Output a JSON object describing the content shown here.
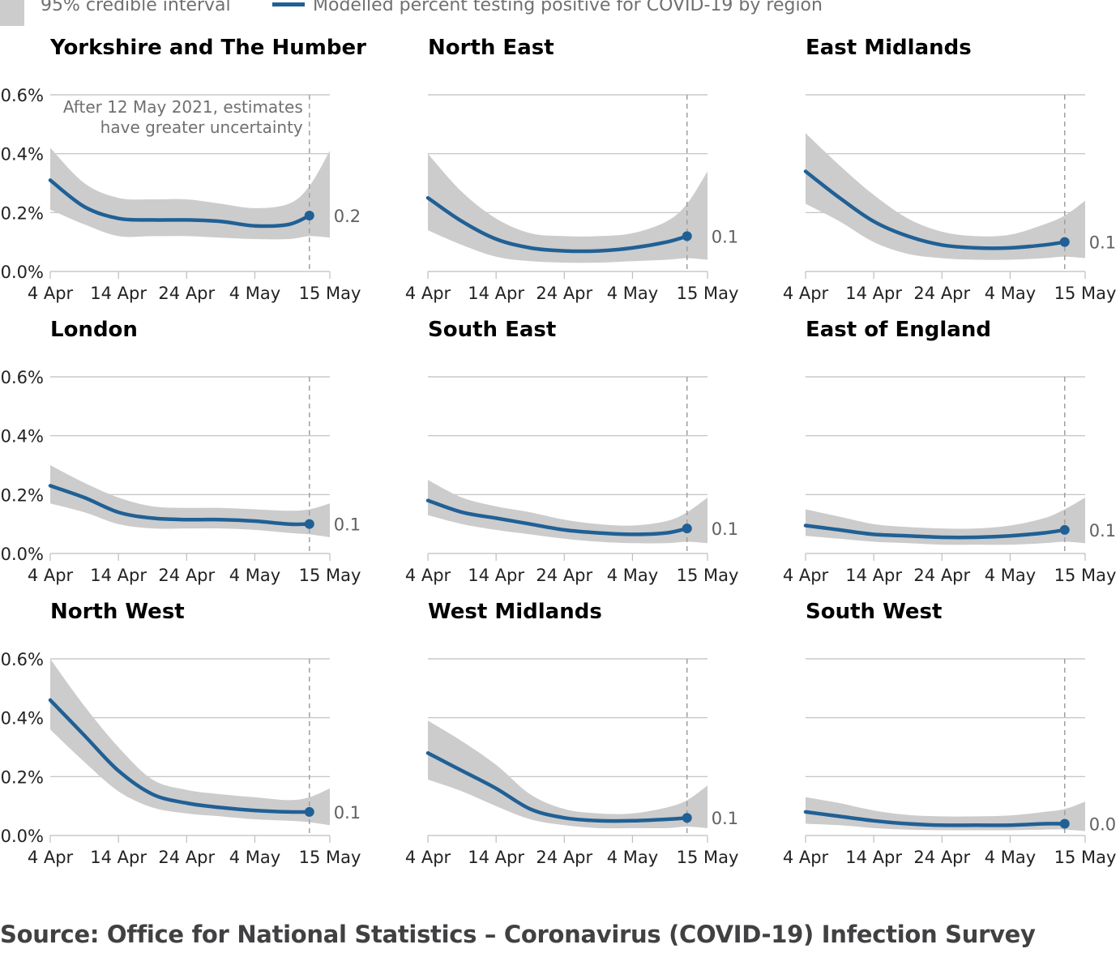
{
  "legend": {
    "band_label": "95% credible interval",
    "line_label": "Modelled percent testing positive for COVID-19 by region"
  },
  "source": "Source: Office for National Statistics – Coronavirus (COVID-19) Infection Survey",
  "colors": {
    "line": "#206095",
    "band": "#cccccc",
    "grid": "#bebebe",
    "axis_text": "#222222",
    "annotation": "#707070",
    "source": "#414042"
  },
  "chart_data": {
    "type": "line",
    "x_ticks": [
      "4 Apr",
      "14 Apr",
      "24 Apr",
      "4 May",
      "15 May"
    ],
    "y_ticks": [
      "0.0%",
      "0.2%",
      "0.4%",
      "0.6%"
    ],
    "ylim": [
      0,
      0.6
    ],
    "x_dates": [
      "2021-04-04",
      "2021-04-09",
      "2021-04-14",
      "2021-04-19",
      "2021-04-24",
      "2021-04-29",
      "2021-05-04",
      "2021-05-09",
      "2021-05-12",
      "2021-05-15"
    ],
    "annotation": {
      "date": "2021-05-12",
      "text": [
        "After 12 May 2021, estimates",
        "have greater uncertainty"
      ]
    },
    "regions": [
      {
        "name": "Yorkshire and The Humber",
        "end_label": "0.2",
        "values": [
          0.31,
          0.22,
          0.18,
          0.175,
          0.175,
          0.17,
          0.155,
          0.16,
          0.19,
          null
        ],
        "lower": [
          0.21,
          0.16,
          0.12,
          0.12,
          0.12,
          0.115,
          0.11,
          0.11,
          0.12,
          0.115
        ],
        "upper": [
          0.42,
          0.3,
          0.25,
          0.245,
          0.245,
          0.23,
          0.215,
          0.23,
          0.29,
          0.41
        ]
      },
      {
        "name": "North East",
        "end_label": "0.1",
        "values": [
          0.25,
          0.17,
          0.11,
          0.08,
          0.07,
          0.07,
          0.08,
          0.1,
          0.12,
          null
        ],
        "lower": [
          0.14,
          0.09,
          0.05,
          0.035,
          0.03,
          0.03,
          0.035,
          0.04,
          0.045,
          0.04
        ],
        "upper": [
          0.4,
          0.27,
          0.18,
          0.13,
          0.12,
          0.12,
          0.13,
          0.17,
          0.23,
          0.34
        ]
      },
      {
        "name": "East Midlands",
        "end_label": "0.1",
        "values": [
          0.34,
          0.25,
          0.17,
          0.12,
          0.09,
          0.08,
          0.08,
          0.09,
          0.1,
          null
        ],
        "lower": [
          0.23,
          0.17,
          0.1,
          0.06,
          0.045,
          0.04,
          0.04,
          0.045,
          0.05,
          0.045
        ],
        "upper": [
          0.47,
          0.36,
          0.26,
          0.18,
          0.135,
          0.12,
          0.125,
          0.16,
          0.19,
          0.24
        ]
      },
      {
        "name": "London",
        "end_label": "0.1",
        "values": [
          0.23,
          0.19,
          0.14,
          0.12,
          0.115,
          0.115,
          0.11,
          0.1,
          0.1,
          null
        ],
        "lower": [
          0.17,
          0.14,
          0.1,
          0.085,
          0.085,
          0.085,
          0.08,
          0.07,
          0.065,
          0.055
        ],
        "upper": [
          0.3,
          0.24,
          0.19,
          0.16,
          0.155,
          0.155,
          0.15,
          0.145,
          0.15,
          0.17
        ]
      },
      {
        "name": "South East",
        "end_label": "0.1",
        "values": [
          0.18,
          0.14,
          0.12,
          0.1,
          0.08,
          0.07,
          0.065,
          0.07,
          0.085,
          null
        ],
        "lower": [
          0.13,
          0.1,
          0.08,
          0.065,
          0.05,
          0.04,
          0.035,
          0.035,
          0.04,
          0.035
        ],
        "upper": [
          0.25,
          0.19,
          0.16,
          0.14,
          0.115,
          0.1,
          0.095,
          0.11,
          0.14,
          0.19
        ]
      },
      {
        "name": "East of England",
        "end_label": "0.1",
        "values": [
          0.095,
          0.08,
          0.065,
          0.06,
          0.055,
          0.055,
          0.06,
          0.07,
          0.08,
          null
        ],
        "lower": [
          0.06,
          0.05,
          0.04,
          0.035,
          0.03,
          0.03,
          0.03,
          0.035,
          0.04,
          0.035
        ],
        "upper": [
          0.15,
          0.125,
          0.1,
          0.09,
          0.085,
          0.085,
          0.095,
          0.12,
          0.15,
          0.19
        ]
      },
      {
        "name": "North West",
        "end_label": "0.1",
        "values": [
          0.46,
          0.34,
          0.22,
          0.14,
          0.11,
          0.095,
          0.085,
          0.08,
          0.08,
          null
        ],
        "lower": [
          0.36,
          0.25,
          0.15,
          0.095,
          0.075,
          0.065,
          0.055,
          0.05,
          0.045,
          0.035
        ],
        "upper": [
          0.6,
          0.44,
          0.3,
          0.19,
          0.155,
          0.14,
          0.13,
          0.12,
          0.13,
          0.16
        ]
      },
      {
        "name": "West Midlands",
        "end_label": "0.1",
        "values": [
          0.28,
          0.22,
          0.16,
          0.09,
          0.06,
          0.05,
          0.05,
          0.055,
          0.06,
          null
        ],
        "lower": [
          0.19,
          0.15,
          0.1,
          0.055,
          0.035,
          0.025,
          0.025,
          0.025,
          0.03,
          0.025
        ],
        "upper": [
          0.39,
          0.32,
          0.24,
          0.14,
          0.09,
          0.075,
          0.075,
          0.095,
          0.12,
          0.17
        ]
      },
      {
        "name": "South West",
        "end_label": "0.0",
        "values": [
          0.08,
          0.065,
          0.05,
          0.04,
          0.035,
          0.035,
          0.035,
          0.04,
          0.04,
          null
        ],
        "lower": [
          0.04,
          0.035,
          0.025,
          0.02,
          0.018,
          0.018,
          0.018,
          0.02,
          0.02,
          0.015
        ],
        "upper": [
          0.13,
          0.11,
          0.085,
          0.07,
          0.065,
          0.065,
          0.068,
          0.08,
          0.09,
          0.115
        ]
      }
    ]
  }
}
